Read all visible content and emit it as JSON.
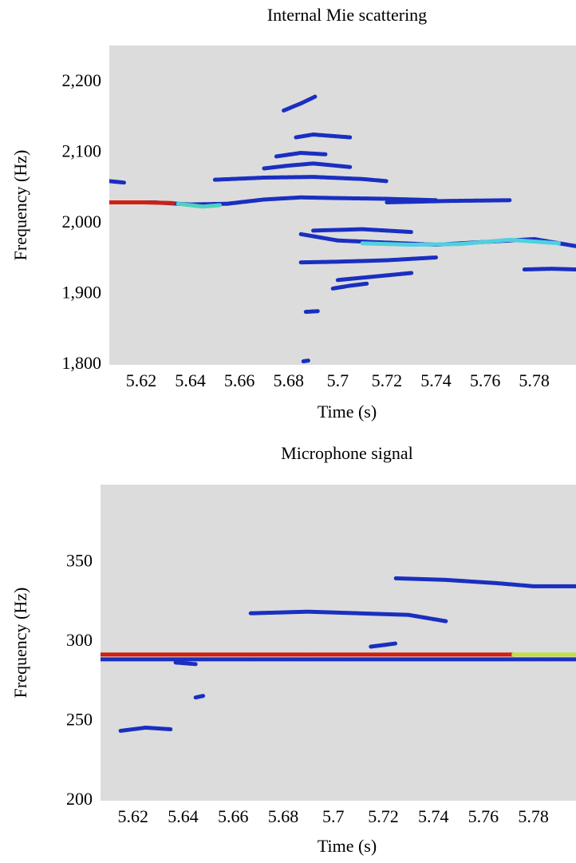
{
  "chart_data": [
    {
      "type": "spectrogram",
      "title": "Internal Mie scattering",
      "xlabel": "Time (s)",
      "ylabel": "Frequency (Hz)",
      "background": "#dcdcdc",
      "xlim": [
        5.607,
        5.797
      ],
      "ylim": [
        1800,
        2252
      ],
      "xticks": [
        5.62,
        5.64,
        5.66,
        5.68,
        5.7,
        5.72,
        5.74,
        5.76,
        5.78
      ],
      "yticks": [
        {
          "value": 1800,
          "label": "1,800"
        },
        {
          "value": 1900,
          "label": "1,900"
        },
        {
          "value": 2000,
          "label": "2,000"
        },
        {
          "value": 2100,
          "label": "2,100"
        },
        {
          "value": 2200,
          "label": "2,200"
        }
      ],
      "series": [
        {
          "color": "#1a2fc0",
          "x": [
            5.607,
            5.625,
            5.64,
            5.655,
            5.67,
            5.685,
            5.7,
            5.72,
            5.74
          ],
          "values": [
            2030,
            2030,
            2027,
            2028,
            2034,
            2037,
            2036,
            2035,
            2033
          ]
        },
        {
          "color": "#d02010",
          "x": [
            5.607,
            5.62,
            5.633
          ],
          "values": [
            2030,
            2030,
            2029
          ]
        },
        {
          "color": "#50d0c0",
          "x": [
            5.635,
            5.645,
            5.652
          ],
          "values": [
            2028,
            2024,
            2026
          ]
        },
        {
          "color": "#1a2fc0",
          "x": [
            5.685,
            5.7,
            5.72,
            5.74,
            5.76,
            5.78,
            5.797
          ],
          "values": [
            1985,
            1976,
            1973,
            1970,
            1974,
            1978,
            1968
          ]
        },
        {
          "color": "#50d0e0",
          "x": [
            5.71,
            5.73,
            5.75,
            5.77,
            5.79
          ],
          "values": [
            1972,
            1970,
            1971,
            1977,
            1972
          ]
        },
        {
          "color": "#1a2fc0",
          "x": [
            5.65,
            5.67,
            5.69,
            5.71,
            5.72
          ],
          "values": [
            2062,
            2065,
            2066,
            2063,
            2060
          ]
        },
        {
          "color": "#1a2fc0",
          "x": [
            5.67,
            5.68,
            5.69,
            5.705
          ],
          "values": [
            2078,
            2082,
            2085,
            2080
          ]
        },
        {
          "color": "#1a2fc0",
          "x": [
            5.675,
            5.685,
            5.695
          ],
          "values": [
            2095,
            2100,
            2098
          ]
        },
        {
          "color": "#1a2fc0",
          "x": [
            5.683,
            5.69,
            5.705
          ],
          "values": [
            2122,
            2126,
            2122
          ]
        },
        {
          "color": "#1a2fc0",
          "x": [
            5.678,
            5.685,
            5.691
          ],
          "values": [
            2160,
            2170,
            2180
          ]
        },
        {
          "color": "#1a2fc0",
          "x": [
            5.685,
            5.7,
            5.72,
            5.74
          ],
          "values": [
            1945,
            1946,
            1948,
            1952
          ]
        },
        {
          "color": "#1a2fc0",
          "x": [
            5.69,
            5.71,
            5.73
          ],
          "values": [
            1990,
            1992,
            1988
          ]
        },
        {
          "color": "#1a2fc0",
          "x": [
            5.7,
            5.715,
            5.73
          ],
          "values": [
            1920,
            1925,
            1930
          ]
        },
        {
          "color": "#1a2fc0",
          "x": [
            5.698,
            5.705,
            5.712
          ],
          "values": [
            1908,
            1912,
            1915
          ]
        },
        {
          "color": "#1a2fc0",
          "x": [
            5.687,
            5.692
          ],
          "values": [
            1875,
            1876
          ]
        },
        {
          "color": "#1a2fc0",
          "x": [
            5.686,
            5.688
          ],
          "values": [
            1805,
            1806
          ]
        },
        {
          "color": "#1a2fc0",
          "x": [
            5.607,
            5.613
          ],
          "values": [
            2060,
            2058
          ]
        },
        {
          "color": "#1a2fc0",
          "x": [
            5.72,
            5.745,
            5.77
          ],
          "values": [
            2030,
            2032,
            2033
          ]
        },
        {
          "color": "#1a2fc0",
          "x": [
            5.776,
            5.787,
            5.797
          ],
          "values": [
            1935,
            1936,
            1935
          ]
        }
      ]
    },
    {
      "type": "spectrogram",
      "title": "Microphone signal",
      "xlabel": "Time (s)",
      "ylabel": "Frequency (Hz)",
      "background": "#dcdcdc",
      "xlim": [
        5.607,
        5.797
      ],
      "ylim": [
        200,
        399
      ],
      "xticks": [
        5.62,
        5.64,
        5.66,
        5.68,
        5.7,
        5.72,
        5.74,
        5.76,
        5.78
      ],
      "yticks": [
        200,
        250,
        300,
        350
      ],
      "series": [
        {
          "color": "#1a2fc0",
          "x": [
            5.607,
            5.65,
            5.7,
            5.75,
            5.797
          ],
          "values": [
            289,
            289,
            289,
            289,
            289
          ]
        },
        {
          "color": "#d02010",
          "x": [
            5.607,
            5.65,
            5.7,
            5.75,
            5.772
          ],
          "values": [
            292,
            292,
            292,
            292,
            292
          ]
        },
        {
          "color": "#c0e040",
          "x": [
            5.772,
            5.785,
            5.797
          ],
          "values": [
            292,
            292,
            292
          ]
        },
        {
          "color": "#1a2fc0",
          "x": [
            5.725,
            5.745,
            5.765,
            5.78,
            5.797
          ],
          "values": [
            340,
            339,
            337,
            335,
            335
          ]
        },
        {
          "color": "#1a2fc0",
          "x": [
            5.667,
            5.69,
            5.71,
            5.73,
            5.745
          ],
          "values": [
            318,
            319,
            318,
            317,
            313
          ]
        },
        {
          "color": "#1a2fc0",
          "x": [
            5.715,
            5.725
          ],
          "values": [
            297,
            299
          ]
        },
        {
          "color": "#1a2fc0",
          "x": [
            5.615,
            5.625,
            5.635
          ],
          "values": [
            244,
            246,
            245
          ]
        },
        {
          "color": "#1a2fc0",
          "x": [
            5.645,
            5.648
          ],
          "values": [
            265,
            266
          ]
        },
        {
          "color": "#1a2fc0",
          "x": [
            5.637,
            5.645
          ],
          "values": [
            287,
            286
          ]
        }
      ]
    }
  ]
}
